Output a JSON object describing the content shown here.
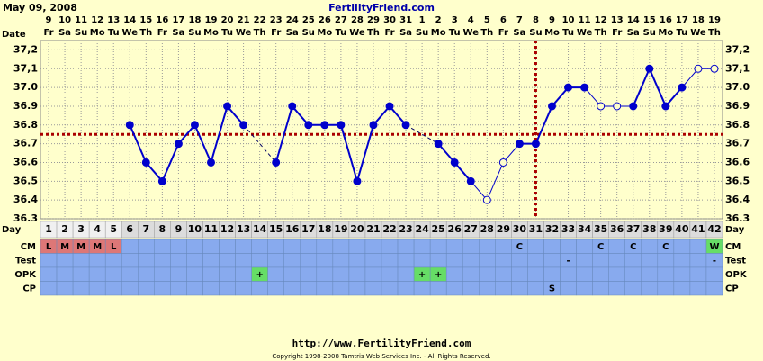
{
  "header": {
    "date": "May 09, 2008",
    "site": "FertilityFriend.com"
  },
  "chart_data": {
    "type": "line",
    "date_label": "Date",
    "day_label": "Day",
    "dates": [
      9,
      10,
      11,
      12,
      13,
      14,
      15,
      16,
      17,
      18,
      19,
      20,
      21,
      22,
      23,
      24,
      25,
      26,
      27,
      28,
      29,
      30,
      31,
      1,
      2,
      3,
      4,
      5,
      6,
      7,
      8,
      9,
      10,
      11,
      12,
      13,
      14,
      15,
      16,
      17,
      18,
      19
    ],
    "weekdays": [
      "Fr",
      "Sa",
      "Su",
      "Mo",
      "Tu",
      "We",
      "Th",
      "Fr",
      "Sa",
      "Su",
      "Mo",
      "Tu",
      "We",
      "Th",
      "Fr",
      "Sa",
      "Su",
      "Mo",
      "Tu",
      "We",
      "Th",
      "Fr",
      "Sa",
      "Su",
      "Mo",
      "Tu",
      "We",
      "Th",
      "Fr",
      "Sa",
      "Su",
      "Mo",
      "Tu",
      "We",
      "Th",
      "Fr",
      "Sa",
      "Su",
      "Mo",
      "Tu",
      "We",
      "Th"
    ],
    "days": [
      1,
      2,
      3,
      4,
      5,
      6,
      7,
      8,
      9,
      10,
      11,
      12,
      13,
      14,
      15,
      16,
      17,
      18,
      19,
      20,
      21,
      22,
      23,
      24,
      25,
      26,
      27,
      28,
      29,
      30,
      31,
      32,
      33,
      34,
      35,
      36,
      37,
      38,
      39,
      40,
      41,
      42
    ],
    "series": [
      {
        "color": "#0000cc",
        "values": [
          null,
          null,
          null,
          null,
          null,
          36.8,
          36.6,
          36.5,
          36.7,
          36.8,
          36.6,
          36.9,
          36.8,
          null,
          36.6,
          36.9,
          36.8,
          36.8,
          36.8,
          36.5,
          36.8,
          36.9,
          36.8,
          null,
          36.7,
          36.6,
          36.5,
          36.4,
          36.6,
          36.7,
          36.7,
          36.9,
          37.0,
          37.0,
          36.9,
          36.9,
          36.9,
          37.1,
          36.9,
          37.0,
          37.1,
          37.1
        ],
        "open": [
          false,
          false,
          false,
          false,
          false,
          false,
          false,
          false,
          false,
          false,
          false,
          false,
          false,
          false,
          false,
          false,
          false,
          false,
          false,
          false,
          false,
          false,
          false,
          false,
          false,
          false,
          false,
          true,
          true,
          false,
          false,
          false,
          false,
          false,
          true,
          true,
          false,
          false,
          false,
          false,
          true,
          true
        ]
      }
    ],
    "ylim": [
      36.3,
      37.25
    ],
    "yticks": [
      {
        "value": 36.3,
        "label": "36.3"
      },
      {
        "value": 36.4,
        "label": "36.4"
      },
      {
        "value": 36.5,
        "label": "36.5"
      },
      {
        "value": 36.6,
        "label": "36.6"
      },
      {
        "value": 36.7,
        "label": "36.7"
      },
      {
        "value": 36.8,
        "label": "36.8"
      },
      {
        "value": 36.9,
        "label": "36.9"
      },
      {
        "value": 37.0,
        "label": "37.0"
      },
      {
        "value": 37.1,
        "label": "37,1"
      },
      {
        "value": 37.2,
        "label": "37,2"
      }
    ],
    "coverline": 36.75,
    "coverline_color": "#aa0000",
    "ovulation_day": 31,
    "rows": [
      {
        "name": "CM",
        "cells": [
          "L",
          "M",
          "M",
          "M",
          "L",
          null,
          null,
          null,
          null,
          null,
          null,
          null,
          null,
          null,
          null,
          null,
          null,
          null,
          null,
          null,
          null,
          null,
          null,
          null,
          null,
          null,
          null,
          null,
          null,
          "C",
          null,
          null,
          null,
          null,
          "C",
          null,
          "C",
          null,
          "C",
          null,
          null,
          "W"
        ]
      },
      {
        "name": "Test",
        "cells": [
          null,
          null,
          null,
          null,
          null,
          null,
          null,
          null,
          null,
          null,
          null,
          null,
          null,
          null,
          null,
          null,
          null,
          null,
          null,
          null,
          null,
          null,
          null,
          null,
          null,
          null,
          null,
          null,
          null,
          null,
          null,
          null,
          "-",
          null,
          null,
          null,
          null,
          null,
          null,
          null,
          null,
          "-"
        ]
      },
      {
        "name": "OPK",
        "cells": [
          null,
          null,
          null,
          null,
          null,
          null,
          null,
          null,
          null,
          null,
          null,
          null,
          null,
          "+",
          null,
          null,
          null,
          null,
          null,
          null,
          null,
          null,
          null,
          "+",
          "+",
          null,
          null,
          null,
          null,
          null,
          null,
          null,
          null,
          null,
          null,
          null,
          null,
          null,
          null,
          null,
          null,
          null
        ]
      },
      {
        "name": "CP",
        "cells": [
          null,
          null,
          null,
          null,
          null,
          null,
          null,
          null,
          null,
          null,
          null,
          null,
          null,
          null,
          null,
          null,
          null,
          null,
          null,
          null,
          null,
          null,
          null,
          null,
          null,
          null,
          null,
          null,
          null,
          null,
          null,
          "S",
          null,
          null,
          null,
          null,
          null,
          null,
          null,
          null,
          null,
          null
        ]
      }
    ]
  },
  "footer": {
    "url": "http://www.FertilityFriend.com",
    "copyright": "Copyright 1998-2008 Tamtris Web Services Inc. - All Rights Reserved."
  }
}
